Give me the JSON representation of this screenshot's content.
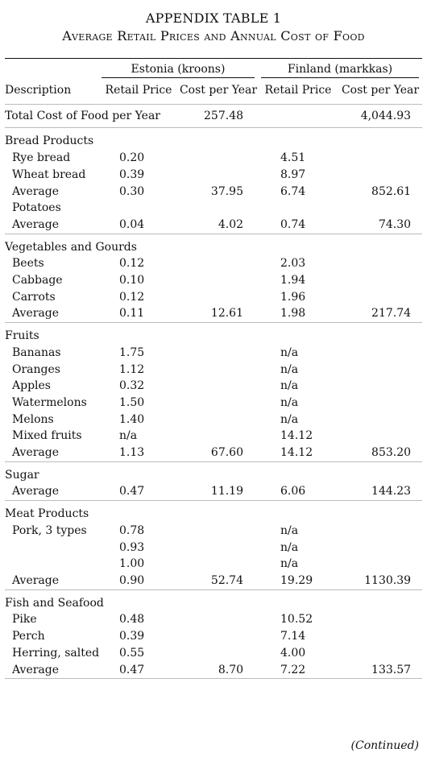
{
  "title": {
    "line1": "APPENDIX TABLE 1",
    "line2": "Average Retail Prices and Annual Cost of Food"
  },
  "header": {
    "description": "Description",
    "estonia": "Estonia (kroons)",
    "finland": "Finland (markkas)",
    "retail_price": "Retail Price",
    "cost_per_year": "Cost per Year"
  },
  "total": {
    "label": "Total Cost of Food per Year",
    "estonia_cost": "257.48",
    "finland_cost": "4,044.93"
  },
  "groups": [
    {
      "rows": [
        {
          "label": "Bread Products",
          "indent": false,
          "e_rp": "",
          "e_cy": "",
          "f_rp": "",
          "f_cy": ""
        },
        {
          "label": "Rye bread",
          "indent": true,
          "e_rp": "0.20",
          "e_cy": "",
          "f_rp": "4.51",
          "f_cy": ""
        },
        {
          "label": "Wheat bread",
          "indent": true,
          "e_rp": "0.39",
          "e_cy": "",
          "f_rp": "8.97",
          "f_cy": ""
        },
        {
          "label": "Average",
          "indent": true,
          "e_rp": "0.30",
          "e_cy": "37.95",
          "f_rp": "6.74",
          "f_cy": "852.61"
        },
        {
          "label": "Potatoes",
          "indent": true,
          "e_rp": "",
          "e_cy": "",
          "f_rp": "",
          "f_cy": ""
        },
        {
          "label": "Average",
          "indent": true,
          "e_rp": "0.04",
          "e_cy": "4.02",
          "f_rp": "0.74",
          "f_cy": "74.30"
        }
      ]
    },
    {
      "rows": [
        {
          "label": "Vegetables and Gourds",
          "indent": false,
          "e_rp": "",
          "e_cy": "",
          "f_rp": "",
          "f_cy": ""
        },
        {
          "label": "Beets",
          "indent": true,
          "e_rp": "0.12",
          "e_cy": "",
          "f_rp": "2.03",
          "f_cy": ""
        },
        {
          "label": "Cabbage",
          "indent": true,
          "e_rp": "0.10",
          "e_cy": "",
          "f_rp": "1.94",
          "f_cy": ""
        },
        {
          "label": "Carrots",
          "indent": true,
          "e_rp": "0.12",
          "e_cy": "",
          "f_rp": "1.96",
          "f_cy": ""
        },
        {
          "label": "Average",
          "indent": true,
          "e_rp": "0.11",
          "e_cy": "12.61",
          "f_rp": "1.98",
          "f_cy": "217.74"
        }
      ]
    },
    {
      "rows": [
        {
          "label": "Fruits",
          "indent": false,
          "e_rp": "",
          "e_cy": "",
          "f_rp": "",
          "f_cy": ""
        },
        {
          "label": "Bananas",
          "indent": true,
          "e_rp": "1.75",
          "e_cy": "",
          "f_rp": "n/a",
          "f_cy": ""
        },
        {
          "label": "Oranges",
          "indent": true,
          "e_rp": "1.12",
          "e_cy": "",
          "f_rp": "n/a",
          "f_cy": ""
        },
        {
          "label": "Apples",
          "indent": true,
          "e_rp": "0.32",
          "e_cy": "",
          "f_rp": "n/a",
          "f_cy": ""
        },
        {
          "label": "Watermelons",
          "indent": true,
          "e_rp": "1.50",
          "e_cy": "",
          "f_rp": "n/a",
          "f_cy": ""
        },
        {
          "label": "Melons",
          "indent": true,
          "e_rp": "1.40",
          "e_cy": "",
          "f_rp": "n/a",
          "f_cy": ""
        },
        {
          "label": "Mixed fruits",
          "indent": true,
          "e_rp": "n/a",
          "e_cy": "",
          "f_rp": "14.12",
          "f_cy": ""
        },
        {
          "label": "Average",
          "indent": true,
          "e_rp": "1.13",
          "e_cy": "67.60",
          "f_rp": "14.12",
          "f_cy": "853.20"
        }
      ]
    },
    {
      "rows": [
        {
          "label": "Sugar",
          "indent": false,
          "e_rp": "",
          "e_cy": "",
          "f_rp": "",
          "f_cy": ""
        },
        {
          "label": "Average",
          "indent": true,
          "e_rp": "0.47",
          "e_cy": "11.19",
          "f_rp": "6.06",
          "f_cy": "144.23"
        }
      ]
    },
    {
      "rows": [
        {
          "label": "Meat Products",
          "indent": false,
          "e_rp": "",
          "e_cy": "",
          "f_rp": "",
          "f_cy": ""
        },
        {
          "label": "Pork, 3 types",
          "indent": true,
          "e_rp": "0.78",
          "e_cy": "",
          "f_rp": "n/a",
          "f_cy": ""
        },
        {
          "label": "",
          "indent": true,
          "e_rp": "0.93",
          "e_cy": "",
          "f_rp": "n/a",
          "f_cy": ""
        },
        {
          "label": "",
          "indent": true,
          "e_rp": "1.00",
          "e_cy": "",
          "f_rp": "n/a",
          "f_cy": ""
        },
        {
          "label": "Average",
          "indent": true,
          "e_rp": "0.90",
          "e_cy": "52.74",
          "f_rp": "19.29",
          "f_cy": "1130.39"
        }
      ]
    },
    {
      "rows": [
        {
          "label": "Fish and Seafood",
          "indent": false,
          "e_rp": "",
          "e_cy": "",
          "f_rp": "",
          "f_cy": ""
        },
        {
          "label": "Pike",
          "indent": true,
          "e_rp": "0.48",
          "e_cy": "",
          "f_rp": "10.52",
          "f_cy": ""
        },
        {
          "label": "Perch",
          "indent": true,
          "e_rp": "0.39",
          "e_cy": "",
          "f_rp": "7.14",
          "f_cy": ""
        },
        {
          "label": "Herring, salted",
          "indent": true,
          "e_rp": "0.55",
          "e_cy": "",
          "f_rp": "4.00",
          "f_cy": ""
        },
        {
          "label": "Average",
          "indent": true,
          "e_rp": "0.47",
          "e_cy": "8.70",
          "f_rp": "7.22",
          "f_cy": "133.57"
        }
      ]
    }
  ],
  "footer": {
    "continued": "(Continued)"
  }
}
